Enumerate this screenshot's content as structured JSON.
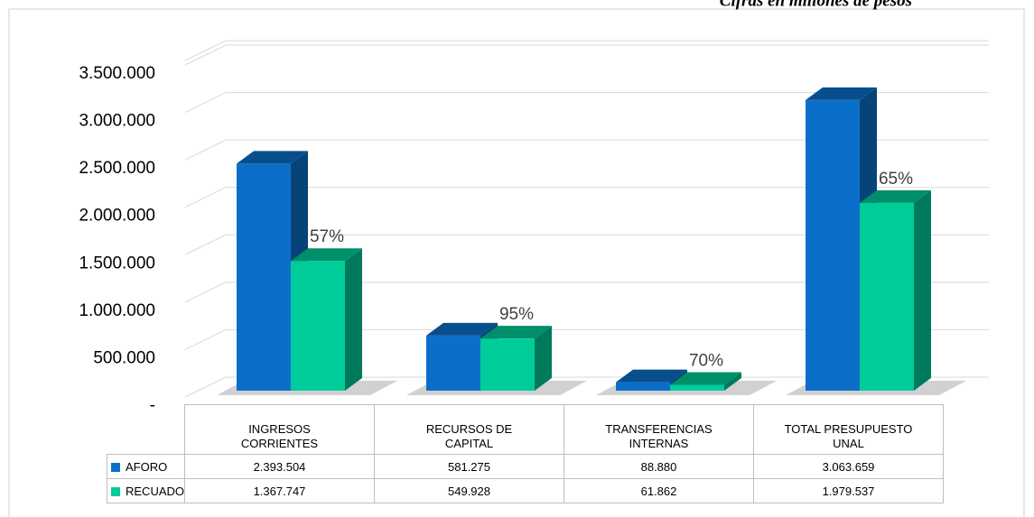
{
  "chart_data": {
    "type": "bar3d",
    "subtitle": "Cifras en millones de pesos",
    "categories": [
      "INGRESOS\nCORRIENTES",
      "RECURSOS DE\nCAPITAL",
      "TRANSFERENCIAS\nINTERNAS",
      "TOTAL PRESUPUESTO\nUNAL"
    ],
    "series": [
      {
        "name": "AFORO",
        "color": "#0b6fca",
        "values": [
          2393504,
          581275,
          88880,
          3063659
        ],
        "value_labels": [
          "2.393.504",
          "581.275",
          "88.880",
          "3.063.659"
        ]
      },
      {
        "name": "RECUADO",
        "color": "#00cc99",
        "values": [
          1367747,
          549928,
          61862,
          1979537
        ],
        "value_labels": [
          "1.367.747",
          "549.928",
          "61.862",
          "1.979.537"
        ]
      }
    ],
    "annotations": [
      "57%",
      "95%",
      "70%",
      "65%"
    ],
    "ylim": [
      0,
      3500000
    ],
    "yticks": [
      {
        "value": 0,
        "label": "-"
      },
      {
        "value": 500000,
        "label": "500.000"
      },
      {
        "value": 1000000,
        "label": "1.000.000"
      },
      {
        "value": 1500000,
        "label": "1.500.000"
      },
      {
        "value": 2000000,
        "label": "2.000.000"
      },
      {
        "value": 2500000,
        "label": "2.500.000"
      },
      {
        "value": 3000000,
        "label": "3.000.000"
      },
      {
        "value": 3500000,
        "label": "3.500.000"
      }
    ],
    "grid": true
  }
}
